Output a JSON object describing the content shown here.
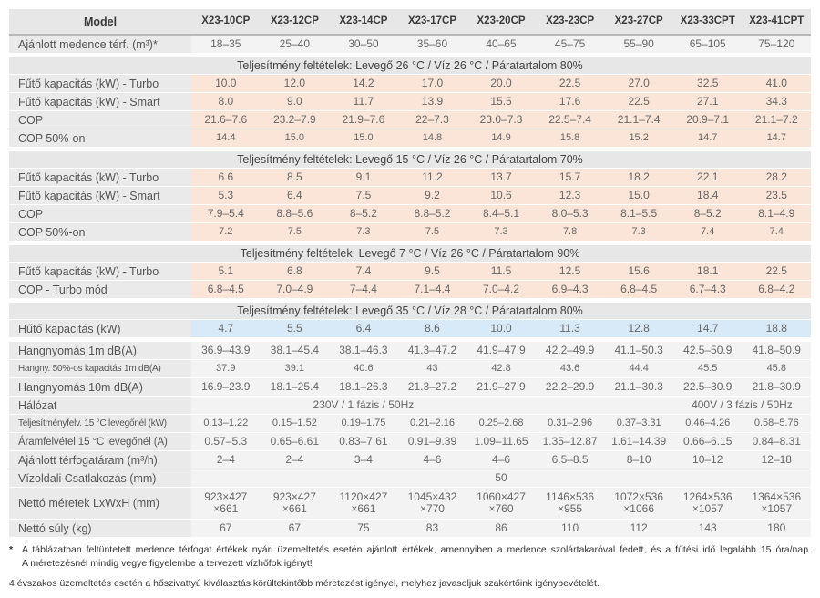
{
  "colors": {
    "header_bg": "#e7e7e7",
    "label_column_bg": "#eaeaea",
    "gray_value_bg": "#f3f3f3",
    "heating_value_bg": "#fbe5d8",
    "cooling_value_bg": "#d8e9f7",
    "header_border": "#b9b9b9",
    "text_dark": "#3a3a3a",
    "text_value": "#666666"
  },
  "table": {
    "model_header": "Model",
    "columns": [
      "X23-10CP",
      "X23-12CP",
      "X23-14CP",
      "X23-17CP",
      "X23-20CP",
      "X23-23CP",
      "X23-27CP",
      "X23-33CPT",
      "X23-41CPT"
    ],
    "rows": [
      {
        "type": "data",
        "style": "gray",
        "label": "Ajánlott medence térf. (m³)*",
        "values": [
          "18–35",
          "25–40",
          "30–50",
          "35–60",
          "40–65",
          "45–75",
          "55–90",
          "65–105",
          "75–120"
        ]
      },
      {
        "type": "section",
        "label": "Teljesítmény feltételek: Levegő 26 °C / Víz 26 °C / Páratartalom 80%"
      },
      {
        "type": "data",
        "style": "peach",
        "label": "Fűtő kapacitás (kW) - Turbo",
        "values": [
          "10.0",
          "12.0",
          "14.2",
          "17.0",
          "20.0",
          "22.5",
          "27.0",
          "32.5",
          "41.0"
        ]
      },
      {
        "type": "data",
        "style": "peach",
        "label": "Fűtő kapacitás (kW) - Smart",
        "values": [
          "8.0",
          "9.0",
          "11.7",
          "13.9",
          "15.5",
          "17.6",
          "22.5",
          "27.1",
          "34.3"
        ]
      },
      {
        "type": "data",
        "style": "peach",
        "label": "COP",
        "values": [
          "21.6–7.6",
          "23.2–7.9",
          "21.9–7.6",
          "22–7.3",
          "23.0–7.3",
          "22.5–7.4",
          "21.1–7.4",
          "20.9–7.1",
          "21.1–7.2"
        ]
      },
      {
        "type": "data",
        "style": "peach",
        "small_values": true,
        "label": "COP 50%-on",
        "values": [
          "14.4",
          "15.0",
          "15.0",
          "14.8",
          "14.9",
          "15.8",
          "15.2",
          "14.7",
          "14.7"
        ]
      },
      {
        "type": "section",
        "label": "Teljesítmény feltételek: Levegő 15 °C / Víz 26 °C / Páratartalom 70%"
      },
      {
        "type": "data",
        "style": "peach",
        "label": "Fűtő kapacitás (kW) - Turbo",
        "values": [
          "6.6",
          "8.5",
          "9.1",
          "11.2",
          "13.7",
          "15.7",
          "18.2",
          "22.1",
          "28.2"
        ]
      },
      {
        "type": "data",
        "style": "peach",
        "label": "Fűtő kapacitás (kW) - Smart",
        "values": [
          "5.3",
          "6.4",
          "7.5",
          "9.2",
          "10.6",
          "12.3",
          "15.0",
          "18.4",
          "23.5"
        ]
      },
      {
        "type": "data",
        "style": "peach",
        "label": "COP",
        "values": [
          "7.9–5.4",
          "8.8–5.6",
          "8–5.2",
          "8.8–5.2",
          "8.4–5.1",
          "8.0–5.3",
          "8.1–5.5",
          "8–5.2",
          "8.1–4.9"
        ]
      },
      {
        "type": "data",
        "style": "peach",
        "small_values": true,
        "label": "COP 50%-on",
        "values": [
          "7.2",
          "7.5",
          "7.3",
          "7.5",
          "7.3",
          "7.8",
          "7.3",
          "7.4",
          "7.4"
        ]
      },
      {
        "type": "section",
        "label": "Teljesítmény feltételek: Levegő 7 °C / Víz 26 °C / Páratartalom 90%"
      },
      {
        "type": "data",
        "style": "peach",
        "label": "Fűtő kapacitás (kW) - Turbo",
        "values": [
          "5.1",
          "6.8",
          "7.4",
          "9.5",
          "11.5",
          "12.5",
          "15.6",
          "18.1",
          "22.5"
        ]
      },
      {
        "type": "data",
        "style": "peach",
        "label": "COP - Turbo mód",
        "values": [
          "6.8–4.5",
          "7.0–4.9",
          "7–4.4",
          "7.1–4.4",
          "7.0–4.2",
          "6.9–4.3",
          "6.8–4.5",
          "6.7–4.3",
          "6.8–4.2"
        ]
      },
      {
        "type": "section",
        "label": "Teljesítmény feltételek: Levegő 35 °C / Víz 28 °C / Páratartalom 80%"
      },
      {
        "type": "data",
        "style": "blue",
        "label": "Hűtő kapacitás (kW)",
        "values": [
          "4.7",
          "5.5",
          "6.4",
          "8.6",
          "10.0",
          "11.3",
          "12.8",
          "14.7",
          "18.8"
        ]
      },
      {
        "type": "data",
        "style": "gray",
        "gap": true,
        "label": "Hangnyomás 1m dB(A)",
        "values": [
          "36.9–43.9",
          "38.1–45.4",
          "38.1–46.3",
          "41.3–47.2",
          "41.9–47.9",
          "42.2–49.9",
          "41.1–50.3",
          "42.5–50.9",
          "41.8–50.9"
        ]
      },
      {
        "type": "data",
        "style": "gray",
        "small_label": true,
        "small_values": true,
        "label": "Hangny. 50%-os kapacitás 1m dB(A)",
        "values": [
          "37.9",
          "39.1",
          "40.6",
          "43",
          "42.8",
          "43.6",
          "44.4",
          "45.5",
          "45.8"
        ]
      },
      {
        "type": "data",
        "style": "gray",
        "label": "Hangnyomás 10m dB(A)",
        "values": [
          "16.9–23.9",
          "18.1–25.4",
          "18.1–26.3",
          "21.3–27.2",
          "21.9–27.9",
          "22.2–29.9",
          "21.1–30.3",
          "22.5–30.9",
          "21.8–30.9"
        ]
      },
      {
        "type": "network",
        "style": "gray",
        "label": "Hálózat",
        "spans": [
          {
            "cols": 5,
            "text": "230V / 1 fázis / 50Hz"
          },
          {
            "cols": 2,
            "text": ""
          },
          {
            "cols": 2,
            "text": "400V / 3 fázis / 50Hz"
          }
        ]
      },
      {
        "type": "data",
        "style": "gray",
        "small_label": true,
        "small_values": true,
        "label": "Teljesítményfelv. 15 °C levegőnél (kW)",
        "values": [
          "0.13–1.22",
          "0.15–1.52",
          "0.19–1.75",
          "0.21–2.16",
          "0.25–2.68",
          "0.31–2.96",
          "0.37–3.31",
          "0.46–4.26",
          "0.58–5.76"
        ]
      },
      {
        "type": "data",
        "style": "gray",
        "mid_label": true,
        "label": "Áramfelvétel 15 °C levegőnél (A)",
        "values": [
          "0.57–5.3",
          "0.65–6.61",
          "0.83–7.61",
          "0.91–9.39",
          "1.09–11.65",
          "1.35–12.87",
          "1.61–14.39",
          "0.66–6.15",
          "0.84–8.31"
        ]
      },
      {
        "type": "data",
        "style": "gray",
        "label": "Ajánlott térfogatáram (m³/h)",
        "values": [
          "2–4",
          "2–4",
          "3–4",
          "4–6",
          "4–6",
          "6.5–8.5",
          "8–10",
          "10–12",
          "12–18"
        ]
      },
      {
        "type": "spanall",
        "style": "gray",
        "label": "Vízoldali Csatlakozás (mm)",
        "value": "50"
      },
      {
        "type": "data",
        "style": "gray",
        "tall": true,
        "label": "Nettó méretek LxWxH (mm)",
        "values": [
          "923×427\n×661",
          "923×427\n×661",
          "1120×427\n×661",
          "1045×432\n×770",
          "1060×427\n×760",
          "1146×536\n×955",
          "1072×536\n×1066",
          "1264×536\n×1057",
          "1364×536\n×1057"
        ]
      },
      {
        "type": "data",
        "style": "gray",
        "label": "Nettó súly (kg)",
        "values": [
          "67",
          "67",
          "75",
          "83",
          "86",
          "110",
          "112",
          "143",
          "180"
        ]
      }
    ]
  },
  "footnotes": {
    "asterisk": "*",
    "pool_volume_line1": "A táblázatban feltüntetett medence térfogat értékek nyári üzemeltetés esetén ajánlott értékek, amennyiben a medence szolártakaróval fedett, és a fűtési idő legalább 15 óra/nap.",
    "pool_volume_line2": "A méretezésnél mindig vegye figyelembe a tervezett vízhőfok igényt!",
    "four_season": "4 évszakos üzemeltetés esetén a hőszivattyú kiválasztás körültekintőbb méretezést igényel, melyhez javasoljuk szakértőink igénybevételét."
  }
}
